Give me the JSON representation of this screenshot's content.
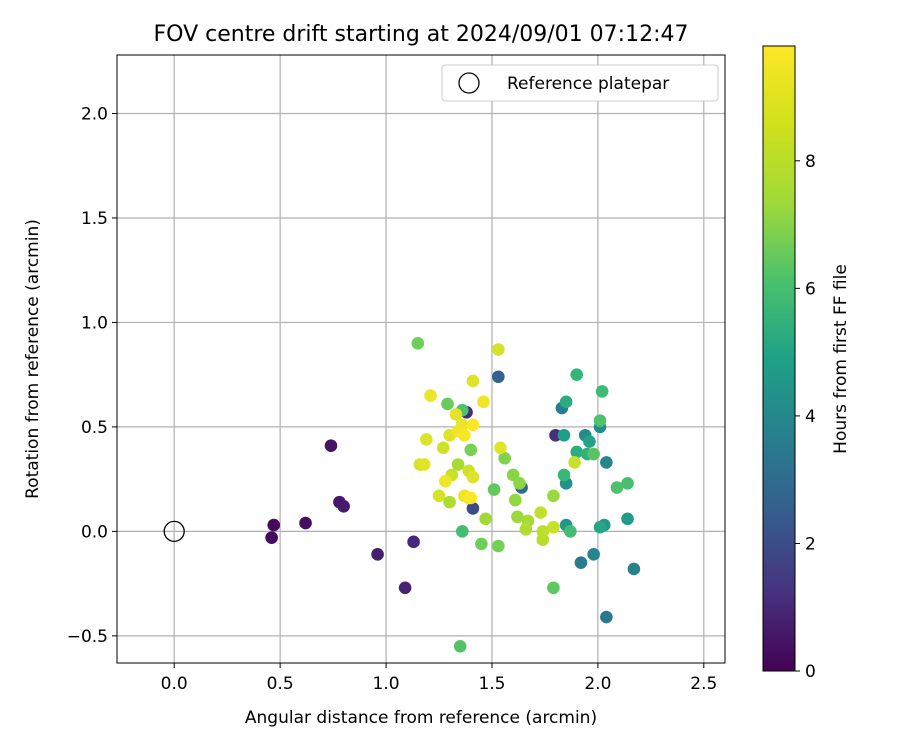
{
  "chart_data": {
    "type": "scatter",
    "title": "FOV centre drift starting at 2024/09/01 07:12:47",
    "xlabel": "Angular distance from reference (arcmin)",
    "ylabel": "Rotation from reference (arcmin)",
    "xlim": [
      -0.27,
      2.6
    ],
    "ylim": [
      -0.63,
      2.28
    ],
    "x_ticks": [
      0.0,
      0.5,
      1.0,
      1.5,
      2.0,
      2.5
    ],
    "x_tick_labels": [
      "0.0",
      "0.5",
      "1.0",
      "1.5",
      "2.0",
      "2.5"
    ],
    "y_ticks": [
      -0.5,
      0.0,
      0.5,
      1.0,
      1.5,
      2.0
    ],
    "y_tick_labels": [
      "−0.5",
      "0.0",
      "0.5",
      "1.0",
      "1.5",
      "2.0"
    ],
    "grid": true,
    "legend": {
      "placement": "top-right",
      "entries": [
        {
          "label": "Reference platepar",
          "marker": "open-circle",
          "x": 0.0,
          "y": 0.0
        }
      ]
    },
    "colorbar": {
      "label": "Hours from first FF file",
      "colormap": "viridis",
      "range": [
        0,
        9.8
      ],
      "ticks": [
        0,
        2,
        4,
        6,
        8
      ],
      "tick_labels": [
        "0",
        "2",
        "4",
        "6",
        "8"
      ]
    },
    "points": [
      {
        "x": 0.47,
        "y": 0.03,
        "h": 0.2
      },
      {
        "x": 0.46,
        "y": -0.03,
        "h": 0.3
      },
      {
        "x": 0.62,
        "y": 0.04,
        "h": 0.4
      },
      {
        "x": 0.74,
        "y": 0.41,
        "h": 0.5
      },
      {
        "x": 0.78,
        "y": 0.14,
        "h": 0.6
      },
      {
        "x": 0.8,
        "y": 0.12,
        "h": 0.7
      },
      {
        "x": 0.96,
        "y": -0.11,
        "h": 0.8
      },
      {
        "x": 1.09,
        "y": -0.27,
        "h": 0.9
      },
      {
        "x": 1.13,
        "y": -0.05,
        "h": 1.1
      },
      {
        "x": 1.38,
        "y": 0.57,
        "h": 1.2
      },
      {
        "x": 1.8,
        "y": 0.46,
        "h": 1.3
      },
      {
        "x": 1.41,
        "y": 0.11,
        "h": 2.2
      },
      {
        "x": 1.53,
        "y": 0.74,
        "h": 3.0
      },
      {
        "x": 1.64,
        "y": 0.21,
        "h": 3.3
      },
      {
        "x": 1.83,
        "y": 0.59,
        "h": 4.2
      },
      {
        "x": 1.92,
        "y": -0.15,
        "h": 4.0
      },
      {
        "x": 2.04,
        "y": -0.41,
        "h": 4.0
      },
      {
        "x": 1.98,
        "y": -0.11,
        "h": 4.5
      },
      {
        "x": 2.17,
        "y": -0.18,
        "h": 4.4
      },
      {
        "x": 2.04,
        "y": 0.33,
        "h": 4.5
      },
      {
        "x": 1.94,
        "y": 0.46,
        "h": 4.7
      },
      {
        "x": 2.01,
        "y": 0.5,
        "h": 4.8
      },
      {
        "x": 1.85,
        "y": 0.23,
        "h": 5.0
      },
      {
        "x": 1.85,
        "y": 0.03,
        "h": 5.2
      },
      {
        "x": 2.03,
        "y": 0.03,
        "h": 5.3
      },
      {
        "x": 2.14,
        "y": 0.06,
        "h": 5.4
      },
      {
        "x": 1.84,
        "y": 0.46,
        "h": 5.5
      },
      {
        "x": 1.96,
        "y": 0.43,
        "h": 5.6
      },
      {
        "x": 2.01,
        "y": 0.02,
        "h": 5.8
      },
      {
        "x": 1.85,
        "y": 0.62,
        "h": 6.0
      },
      {
        "x": 1.9,
        "y": 0.38,
        "h": 6.1
      },
      {
        "x": 1.95,
        "y": 0.37,
        "h": 6.3
      },
      {
        "x": 1.9,
        "y": 0.75,
        "h": 6.5
      },
      {
        "x": 2.02,
        "y": 0.67,
        "h": 6.7
      },
      {
        "x": 1.84,
        "y": 0.27,
        "h": 6.6
      },
      {
        "x": 1.87,
        "y": 0.0,
        "h": 6.8
      },
      {
        "x": 2.14,
        "y": 0.23,
        "h": 6.9
      },
      {
        "x": 2.09,
        "y": 0.21,
        "h": 7.0
      },
      {
        "x": 2.01,
        "y": 0.53,
        "h": 7.0
      },
      {
        "x": 1.98,
        "y": 0.37,
        "h": 7.2
      },
      {
        "x": 1.36,
        "y": 0.58,
        "h": 7.0
      },
      {
        "x": 1.36,
        "y": 0.0,
        "h": 6.8
      },
      {
        "x": 1.35,
        "y": -0.55,
        "h": 7.1
      },
      {
        "x": 1.79,
        "y": -0.27,
        "h": 7.3
      },
      {
        "x": 1.51,
        "y": 0.2,
        "h": 7.4
      },
      {
        "x": 1.29,
        "y": 0.61,
        "h": 7.5
      },
      {
        "x": 1.45,
        "y": -0.06,
        "h": 7.6
      },
      {
        "x": 1.53,
        "y": -0.07,
        "h": 7.7
      },
      {
        "x": 1.15,
        "y": 0.9,
        "h": 7.6
      },
      {
        "x": 1.4,
        "y": 0.39,
        "h": 7.8
      },
      {
        "x": 1.56,
        "y": 0.35,
        "h": 7.9
      },
      {
        "x": 1.6,
        "y": 0.27,
        "h": 8.0
      },
      {
        "x": 1.63,
        "y": 0.23,
        "h": 8.1
      },
      {
        "x": 1.61,
        "y": 0.15,
        "h": 8.2
      },
      {
        "x": 1.79,
        "y": 0.17,
        "h": 8.3
      },
      {
        "x": 1.62,
        "y": 0.07,
        "h": 8.3
      },
      {
        "x": 1.47,
        "y": 0.06,
        "h": 8.4
      },
      {
        "x": 1.67,
        "y": 0.05,
        "h": 8.5
      },
      {
        "x": 1.66,
        "y": 0.01,
        "h": 8.6
      },
      {
        "x": 1.74,
        "y": -0.04,
        "h": 8.7
      },
      {
        "x": 1.74,
        "y": 0.0,
        "h": 8.8
      },
      {
        "x": 1.73,
        "y": 0.09,
        "h": 8.9
      },
      {
        "x": 1.79,
        "y": 0.02,
        "h": 9.0
      },
      {
        "x": 1.89,
        "y": 0.33,
        "h": 9.0
      },
      {
        "x": 1.3,
        "y": 0.14,
        "h": 8.6
      },
      {
        "x": 1.34,
        "y": 0.32,
        "h": 8.5
      },
      {
        "x": 1.31,
        "y": 0.27,
        "h": 9.0
      },
      {
        "x": 1.25,
        "y": 0.17,
        "h": 9.2
      },
      {
        "x": 1.27,
        "y": 0.4,
        "h": 9.1
      },
      {
        "x": 1.19,
        "y": 0.44,
        "h": 9.3
      },
      {
        "x": 1.16,
        "y": 0.32,
        "h": 9.2
      },
      {
        "x": 1.18,
        "y": 0.32,
        "h": 9.4
      },
      {
        "x": 1.21,
        "y": 0.65,
        "h": 9.5
      },
      {
        "x": 1.3,
        "y": 0.46,
        "h": 9.3
      },
      {
        "x": 1.33,
        "y": 0.56,
        "h": 9.4
      },
      {
        "x": 1.36,
        "y": 0.51,
        "h": 9.5
      },
      {
        "x": 1.34,
        "y": 0.48,
        "h": 9.6
      },
      {
        "x": 1.37,
        "y": 0.46,
        "h": 9.7
      },
      {
        "x": 1.41,
        "y": 0.51,
        "h": 9.8
      },
      {
        "x": 1.41,
        "y": 0.72,
        "h": 9.3
      },
      {
        "x": 1.46,
        "y": 0.62,
        "h": 9.6
      },
      {
        "x": 1.53,
        "y": 0.87,
        "h": 9.2
      },
      {
        "x": 1.54,
        "y": 0.4,
        "h": 9.4
      },
      {
        "x": 1.39,
        "y": 0.29,
        "h": 9.1
      },
      {
        "x": 1.41,
        "y": 0.26,
        "h": 9.3
      },
      {
        "x": 1.28,
        "y": 0.24,
        "h": 9.6
      },
      {
        "x": 1.37,
        "y": 0.17,
        "h": 9.5
      },
      {
        "x": 1.39,
        "y": 0.16,
        "h": 9.7
      },
      {
        "x": 1.4,
        "y": 0.16,
        "h": 9.8
      }
    ]
  }
}
